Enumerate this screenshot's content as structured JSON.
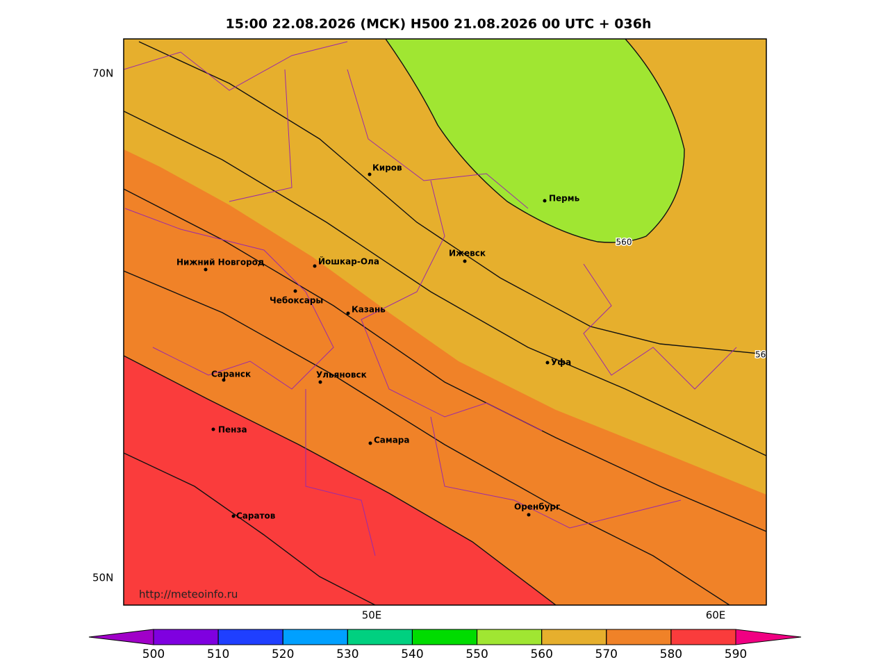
{
  "title": "15:00 22.08.2026 (МСК) H500  21.08.2026 00 UTC + 036h",
  "axes": {
    "lat": [
      "70N",
      "50N"
    ],
    "lon": [
      "50E",
      "60E"
    ]
  },
  "cities": [
    "Киров",
    "Пермь",
    "Ижевск",
    "Нижний Новгород",
    "Йошкар-Ола",
    "Чебоксары",
    "Казань",
    "Уфа",
    "Саранск",
    "Ульяновск",
    "Пенза",
    "Самара",
    "Оренбург",
    "Саратов"
  ],
  "contour_labels": [
    "560",
    "56"
  ],
  "url": "http://meteoinfo.ru",
  "colorbar": {
    "ticks": [
      500,
      510,
      520,
      530,
      540,
      550,
      560,
      570,
      580,
      590
    ],
    "colors": [
      "#7f00e0",
      "#1f3fff",
      "#00a0ff",
      "#00d080",
      "#00dc00",
      "#a0e632",
      "#e6af2d",
      "#f08228",
      "#fa3c3c"
    ],
    "under": "#a000c8",
    "over": "#f00082"
  }
}
